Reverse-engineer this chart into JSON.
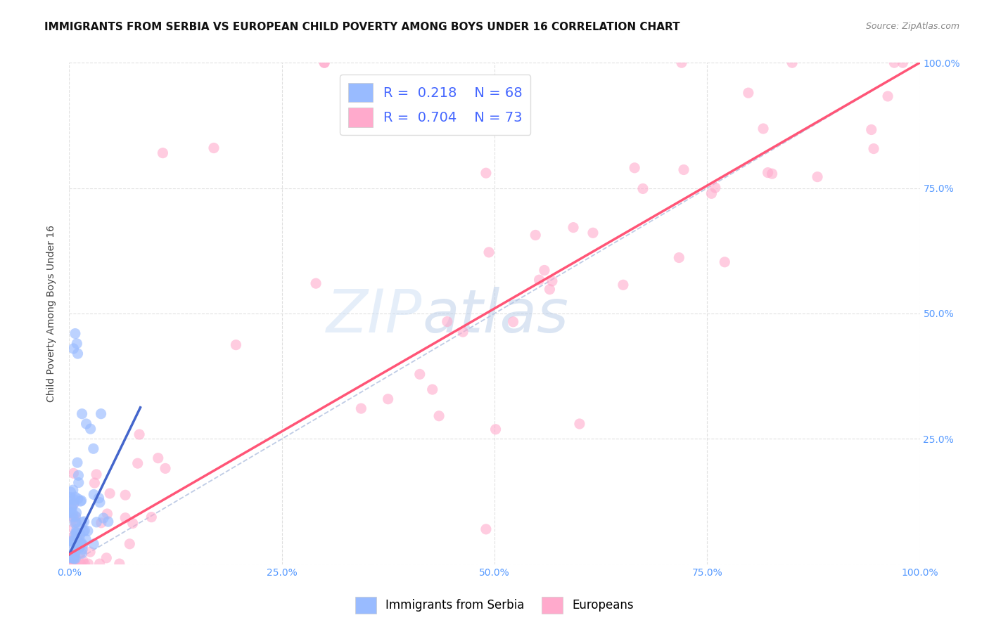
{
  "title": "IMMIGRANTS FROM SERBIA VS EUROPEAN CHILD POVERTY AMONG BOYS UNDER 16 CORRELATION CHART",
  "source": "Source: ZipAtlas.com",
  "ylabel": "Child Poverty Among Boys Under 16",
  "xlim": [
    0,
    1.0
  ],
  "ylim": [
    0,
    1.0
  ],
  "serbia_color": "#99bbff",
  "europeans_color": "#ffaacc",
  "serbia_line_color": "#4466cc",
  "europeans_line_color": "#ff5577",
  "dashed_line_color": "#aabbcc",
  "R_serbia": 0.218,
  "N_serbia": 68,
  "R_europeans": 0.704,
  "N_europeans": 73,
  "background_color": "#ffffff",
  "grid_color": "#dddddd",
  "tick_color": "#5599ff",
  "watermark_zip_color": "#d0e8ff",
  "watermark_atlas_color": "#c0d8f8"
}
